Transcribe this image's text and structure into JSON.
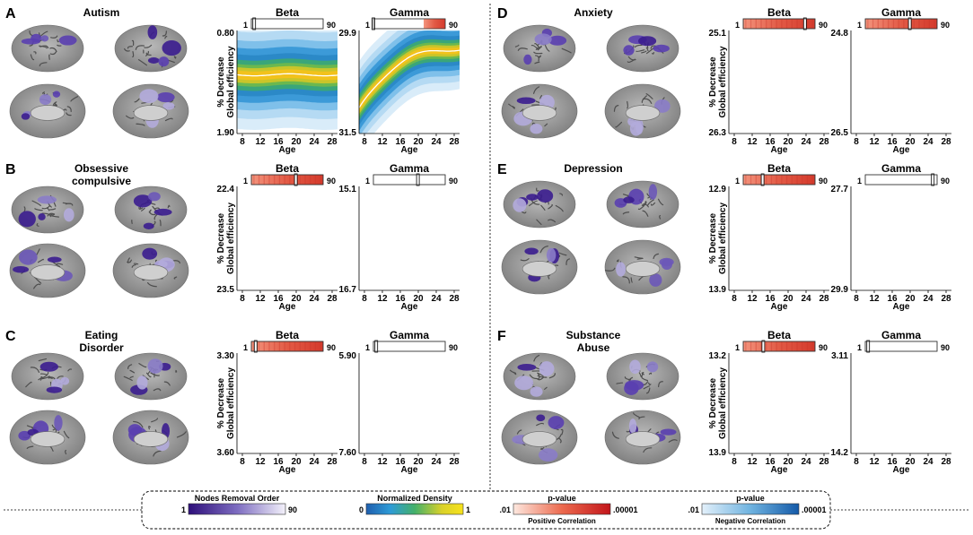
{
  "panels": [
    {
      "letter": "A",
      "title_lines": [
        "Autism"
      ],
      "beta": {
        "label": "Beta",
        "top": "0.80",
        "bottom": "1.90",
        "filled": false,
        "marker": 0.04,
        "curve": "flat"
      },
      "gamma": {
        "label": "Gamma",
        "top": "29.9",
        "bottom": "31.5",
        "filled": false,
        "marker": 0.0,
        "curve": "rise",
        "partial": [
          0.7,
          1.0
        ]
      }
    },
    {
      "letter": "B",
      "title_lines": [
        "Obsessive",
        "compulsive"
      ],
      "beta": {
        "label": "Beta",
        "top": "22.4",
        "bottom": "23.5",
        "filled": true,
        "marker": 0.62,
        "curve": "rise2"
      },
      "gamma": {
        "label": "Gamma",
        "top": "15.1",
        "bottom": "16.7",
        "filled": false,
        "marker": 0.62,
        "curve": "flat2"
      }
    },
    {
      "letter": "C",
      "title_lines": [
        "Eating",
        "Disorder"
      ],
      "beta": {
        "label": "Beta",
        "top": "3.30",
        "bottom": "3.60",
        "filled": true,
        "marker": 0.06,
        "curve": "rise3"
      },
      "gamma": {
        "label": "Gamma",
        "top": "5.90",
        "bottom": "7.60",
        "filled": false,
        "marker": 0.04,
        "curve": "flat3"
      }
    },
    {
      "letter": "D",
      "title_lines": [
        "Anxiety"
      ],
      "beta": {
        "label": "Beta",
        "top": "25.1",
        "bottom": "26.3",
        "filled": true,
        "marker": 0.86,
        "curve": "rise4"
      },
      "gamma": {
        "label": "Gamma",
        "top": "24.8",
        "bottom": "26.5",
        "filled": true,
        "marker": 0.62,
        "curve": "rise5",
        "partial": [
          0.0,
          1.0
        ]
      }
    },
    {
      "letter": "E",
      "title_lines": [
        "Depression"
      ],
      "beta": {
        "label": "Beta",
        "top": "12.9",
        "bottom": "13.9",
        "filled": true,
        "marker": 0.27,
        "curve": "rise6"
      },
      "gamma": {
        "label": "Gamma",
        "top": "27.7",
        "bottom": "29.9",
        "filled": false,
        "marker": 0.94,
        "curve": "flat4"
      }
    },
    {
      "letter": "F",
      "title_lines": [
        "Substance",
        "Abuse"
      ],
      "beta": {
        "label": "Beta",
        "top": "13.2",
        "bottom": "13.9",
        "filled": true,
        "marker": 0.28,
        "curve": "rise7",
        "partial": [
          0.0,
          1.0
        ]
      },
      "gamma": {
        "label": "Gamma",
        "top": "3.11",
        "bottom": "14.2",
        "filled": false,
        "marker": 0.04,
        "curve": "flat5"
      }
    }
  ],
  "axis": {
    "ylabel_line1": "% Decrease",
    "ylabel_line2": "Global efficiency",
    "xlabel": "Age",
    "xticks": [
      "8",
      "12",
      "16",
      "20",
      "24",
      "28"
    ],
    "order_min": "1",
    "order_max": "90"
  },
  "legend": {
    "nodes_title": "Nodes Removal Order",
    "nodes_min": "1",
    "nodes_max": "90",
    "density_title": "Normalized Density",
    "density_min": "0",
    "density_max": "1",
    "pos_title": "p-value",
    "pos_min": ".01",
    "pos_max": ".00001",
    "pos_caption": "Positive Correlation",
    "neg_title": "p-value",
    "neg_min": ".01",
    "neg_max": ".00001",
    "neg_caption": "Negative Correlation"
  },
  "colors": {
    "purple_dark": "#3b1d8f",
    "purple_light": "#e9e6f5",
    "red_dark": "#c41a1a",
    "red_light": "#fbe3da",
    "blue_dark": "#1a5fae",
    "blue_light": "#dcecf8",
    "dens_outer": "#cfe6f7",
    "dens_mid": "#3c9fd9",
    "dens_green": "#4aae6d",
    "dens_core": "#f2c21c"
  }
}
